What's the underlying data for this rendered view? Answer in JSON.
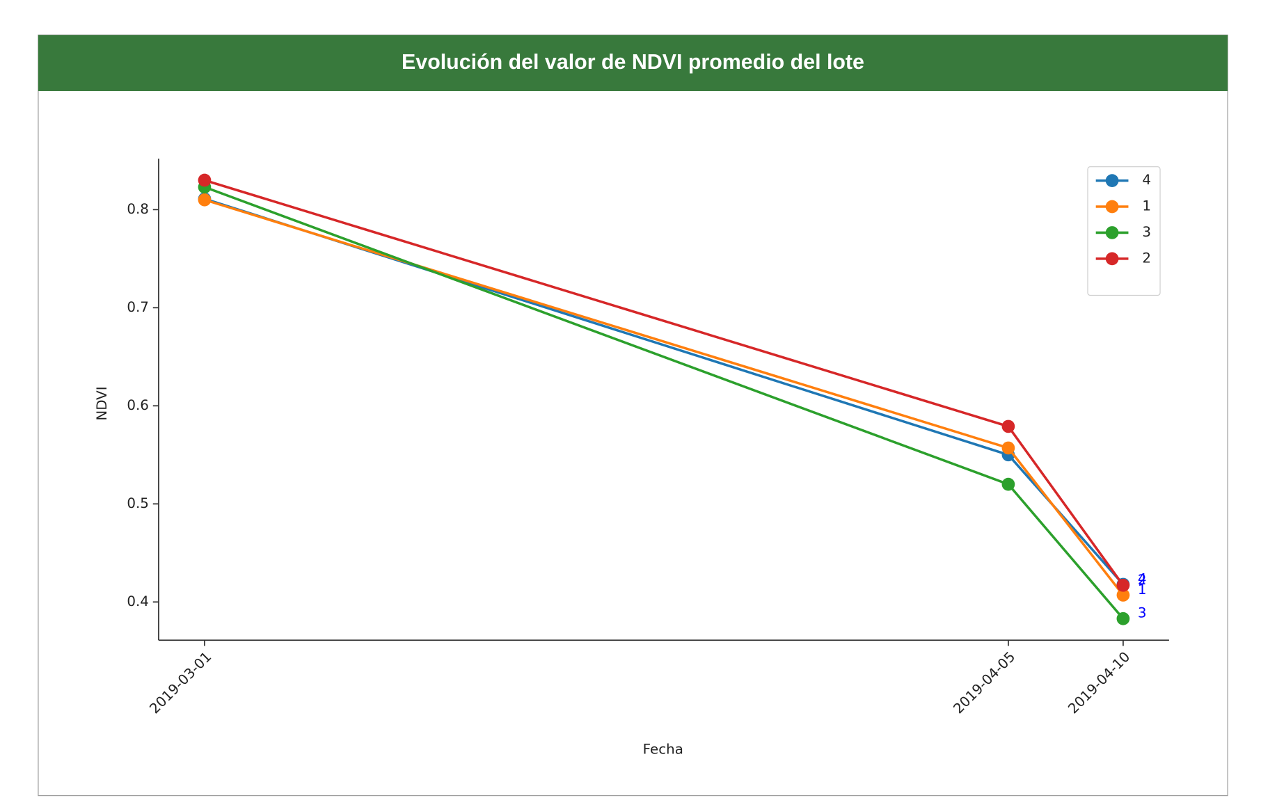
{
  "chart_data": {
    "type": "line",
    "title": "Evolución del valor de NDVI promedio del lote",
    "x_label": "Fecha",
    "y_label": "NDVI",
    "x": [
      "2019-03-01",
      "2019-04-05",
      "2019-04-10"
    ],
    "xlim": [
      "2019-02-27",
      "2019-04-12"
    ],
    "xticks": [
      "2019-03-01",
      "2019-04-05",
      "2019-04-10"
    ],
    "ylim": [
      0.361,
      0.852
    ],
    "yticks": [
      0.4,
      0.5,
      0.6,
      0.7,
      0.8
    ],
    "legend": "upper right",
    "series": [
      {
        "name": "4",
        "color": "#1f77b4",
        "values": [
          0.811,
          0.55,
          0.418
        ]
      },
      {
        "name": "1",
        "color": "#ff7f0e",
        "values": [
          0.81,
          0.557,
          0.407
        ]
      },
      {
        "name": "3",
        "color": "#2ca02c",
        "values": [
          0.823,
          0.52,
          0.383
        ]
      },
      {
        "name": "2",
        "color": "#d62728",
        "values": [
          0.83,
          0.579,
          0.417
        ]
      }
    ],
    "annotations": [
      "4",
      "1",
      "3",
      "2"
    ],
    "annotation_color": "#0000ff"
  }
}
